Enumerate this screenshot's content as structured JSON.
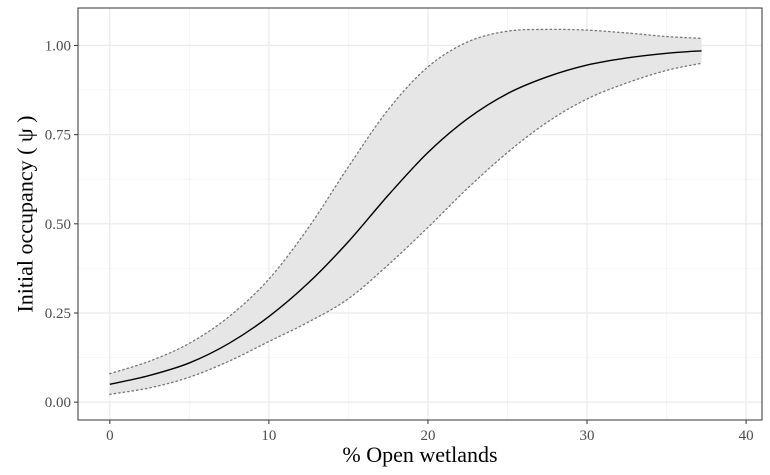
{
  "chart_data": {
    "type": "line",
    "title": "",
    "xlabel": "% Open wetlands",
    "ylabel": "Initial occupancy ( ψ )",
    "xlim": [
      -2,
      41
    ],
    "ylim": [
      -0.05,
      1.105
    ],
    "x_ticks": [
      0,
      10,
      20,
      30,
      40
    ],
    "x_tick_labels": [
      "0",
      "10",
      "20",
      "30",
      "40"
    ],
    "y_ticks": [
      0,
      0.25,
      0.5,
      0.75,
      1.0
    ],
    "y_tick_labels": [
      "0.00",
      "0.25",
      "0.50",
      "0.75",
      "1.00"
    ],
    "grid": true,
    "series": [
      {
        "name": "estimate",
        "style": "solid",
        "x": [
          0,
          2.5,
          5,
          7.5,
          10,
          12.5,
          15,
          17.5,
          20,
          22.5,
          25,
          27.5,
          30,
          32.5,
          35,
          37.2
        ],
        "values": [
          0.05,
          0.075,
          0.11,
          0.165,
          0.24,
          0.335,
          0.45,
          0.58,
          0.7,
          0.795,
          0.865,
          0.912,
          0.945,
          0.965,
          0.978,
          0.985
        ]
      },
      {
        "name": "upper CI",
        "style": "dotted",
        "x": [
          0,
          2.5,
          5,
          7.5,
          10,
          12.5,
          15,
          17.5,
          20,
          22.5,
          25,
          27.5,
          30,
          32.5,
          35,
          37.2
        ],
        "values": [
          0.08,
          0.115,
          0.165,
          0.24,
          0.345,
          0.49,
          0.66,
          0.82,
          0.94,
          1.01,
          1.04,
          1.045,
          1.043,
          1.035,
          1.025,
          1.02
        ]
      },
      {
        "name": "lower CI",
        "style": "dotted",
        "x": [
          0,
          2.5,
          5,
          7.5,
          10,
          12.5,
          15,
          17.5,
          20,
          22.5,
          25,
          27.5,
          30,
          32.5,
          35,
          37.2
        ],
        "values": [
          0.022,
          0.04,
          0.07,
          0.115,
          0.17,
          0.225,
          0.29,
          0.385,
          0.49,
          0.6,
          0.7,
          0.785,
          0.85,
          0.895,
          0.93,
          0.95
        ]
      }
    ],
    "colors": {
      "ribbon": "#e6e6e6",
      "line": "#000000",
      "ci_line": "#777777",
      "grid_major": "#ebebeb",
      "grid_minor": "#f5f5f5",
      "panel_border": "#333333"
    }
  }
}
